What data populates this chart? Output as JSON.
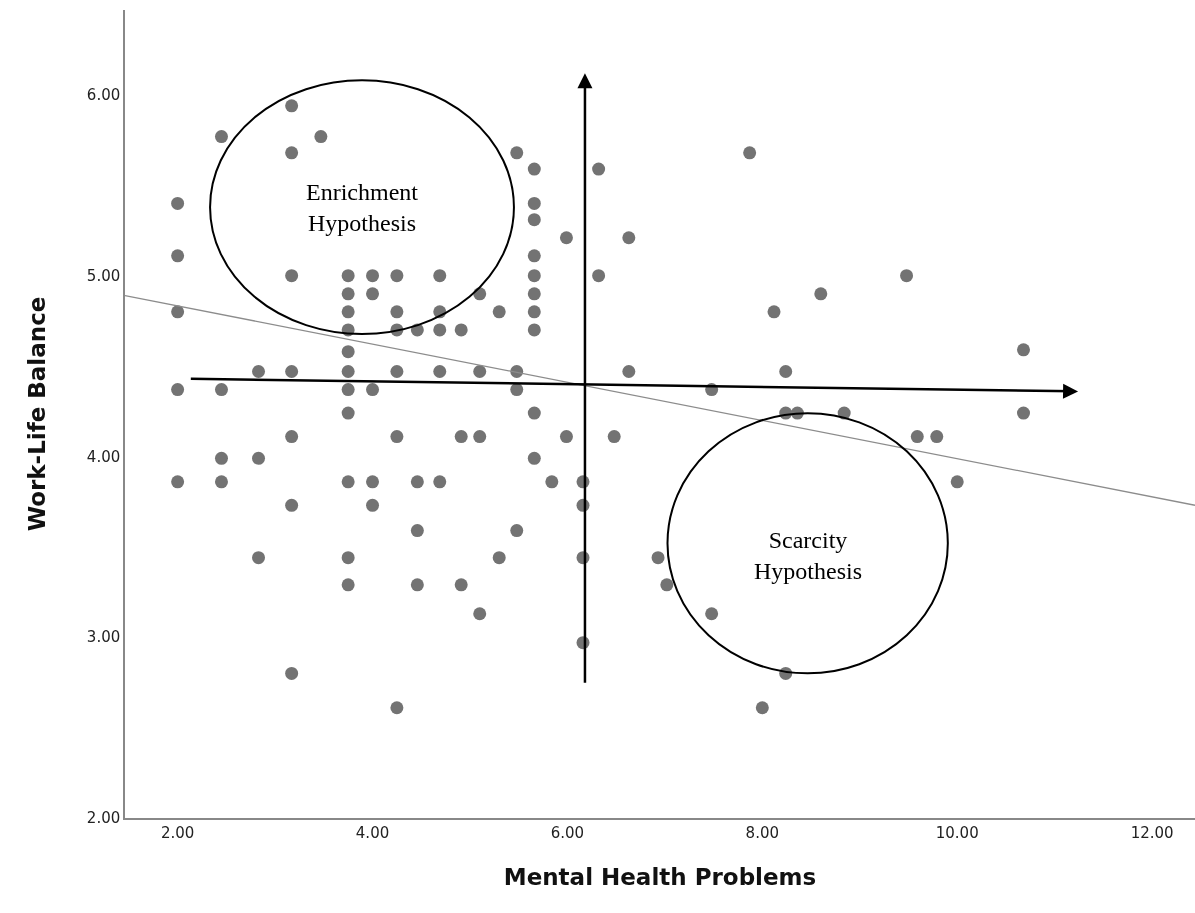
{
  "chart_data": {
    "type": "scatter",
    "xlabel": "Mental Health Problems",
    "ylabel": "Work-Life Balance",
    "xlim": [
      1.46,
      12.44
    ],
    "ylim": [
      2,
      6.47
    ],
    "xticks": [
      {
        "value": 2,
        "label": "2.00"
      },
      {
        "value": 4,
        "label": "4.00"
      },
      {
        "value": 6,
        "label": "6.00"
      },
      {
        "value": 8,
        "label": "8.00"
      },
      {
        "value": 10,
        "label": "10.00"
      },
      {
        "value": 12,
        "label": "12.00"
      }
    ],
    "yticks": [
      {
        "value": 2,
        "label": "2.00"
      },
      {
        "value": 3,
        "label": "3.00"
      },
      {
        "value": 4,
        "label": "4.00"
      },
      {
        "value": 5,
        "label": "5.00"
      },
      {
        "value": 6,
        "label": "6.00"
      }
    ],
    "marker": "circle",
    "series": [
      {
        "color": "#737373",
        "x": [
          2.0,
          2.0,
          2.0,
          2.0,
          2.0,
          2.45,
          2.45,
          2.45,
          2.45,
          2.83,
          2.83,
          2.83,
          3.17,
          3.17,
          3.17,
          3.17,
          3.17,
          3.17,
          3.17,
          3.47,
          3.75,
          3.75,
          3.75,
          3.75,
          3.75,
          3.75,
          3.75,
          3.75,
          3.75,
          3.75,
          3.75,
          4.0,
          4.0,
          4.0,
          4.0,
          4.0,
          4.25,
          4.25,
          4.25,
          4.25,
          4.25,
          4.25,
          4.46,
          4.46,
          4.46,
          4.46,
          4.69,
          4.69,
          4.69,
          4.69,
          4.69,
          4.91,
          4.91,
          4.91,
          5.1,
          5.1,
          5.1,
          5.1,
          5.3,
          5.3,
          5.48,
          5.48,
          5.48,
          5.48,
          5.66,
          5.66,
          5.66,
          5.66,
          5.66,
          5.66,
          5.66,
          5.66,
          5.66,
          5.66,
          5.84,
          5.99,
          5.99,
          6.16,
          6.16,
          6.16,
          6.16,
          6.32,
          6.32,
          6.48,
          6.63,
          6.63,
          6.93,
          7.02,
          7.48,
          7.48,
          7.87,
          8.0,
          8.12,
          8.24,
          8.24,
          8.24,
          8.36,
          8.6,
          8.84,
          9.48,
          9.59,
          9.79,
          10.0,
          10.68,
          10.68
        ],
        "values": [
          5.4,
          5.11,
          4.8,
          4.37,
          3.86,
          5.77,
          4.37,
          3.99,
          3.86,
          4.47,
          3.99,
          3.44,
          5.94,
          5.68,
          5.0,
          4.47,
          4.11,
          3.73,
          2.8,
          5.77,
          5.0,
          4.9,
          4.8,
          4.7,
          4.58,
          4.47,
          4.37,
          4.24,
          3.86,
          3.44,
          3.29,
          5.0,
          4.9,
          4.37,
          3.86,
          3.73,
          5.0,
          4.8,
          4.7,
          4.47,
          4.11,
          2.61,
          4.7,
          3.86,
          3.59,
          3.29,
          5.0,
          4.8,
          4.7,
          4.47,
          3.86,
          4.7,
          4.11,
          3.29,
          4.9,
          4.47,
          4.11,
          3.13,
          4.8,
          3.44,
          5.68,
          4.47,
          4.37,
          3.59,
          5.59,
          5.4,
          5.31,
          5.11,
          5.0,
          4.9,
          4.8,
          4.7,
          4.24,
          3.99,
          3.86,
          5.21,
          4.11,
          3.86,
          3.73,
          3.44,
          2.97,
          5.59,
          5.0,
          4.11,
          5.21,
          4.47,
          3.44,
          3.29,
          3.13,
          4.37,
          5.68,
          2.61,
          4.8,
          4.47,
          4.24,
          2.8,
          4.24,
          4.9,
          4.24,
          5.0,
          4.11,
          4.11,
          3.86,
          4.59,
          4.24
        ]
      },
      {
        "type": "line",
        "color": "#8c8c8c",
        "x": [
          1.46,
          12.44
        ],
        "values": [
          4.89,
          3.73
        ],
        "marker": "none",
        "line_style": "solid"
      }
    ],
    "annotations": [
      "Enrichment\nHypothesis",
      "Scarcity\nHypothesis"
    ]
  }
}
